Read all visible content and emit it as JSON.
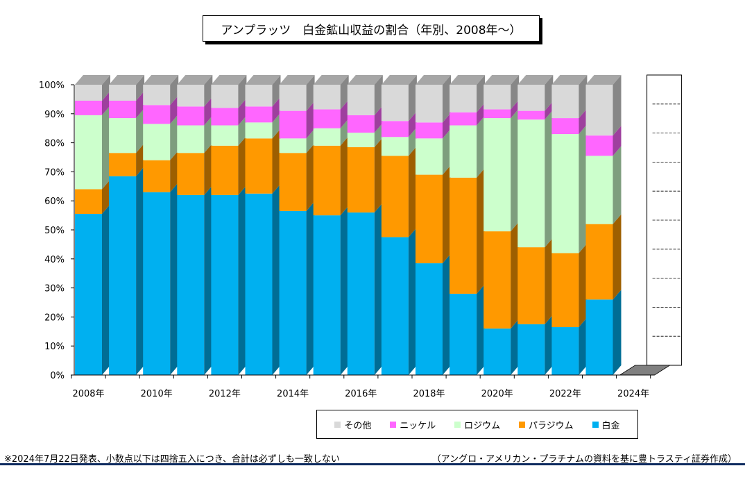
{
  "title": "アンプラッツ　白金鉱山収益の割合（年別、2008年～）",
  "chart_data": {
    "type": "bar",
    "stacked": true,
    "categories": [
      "2008",
      "2009",
      "2010",
      "2011",
      "2012",
      "2013",
      "2014",
      "2015",
      "2016",
      "2017",
      "2018",
      "2019",
      "2020",
      "2021",
      "2022",
      "2023",
      "2024"
    ],
    "xtick_labels": [
      "2008年",
      "2010年",
      "2012年",
      "2014年",
      "2016年",
      "2018年",
      "2020年",
      "2022年",
      "2024年"
    ],
    "ytick_labels": [
      "0%",
      "10%",
      "20%",
      "30%",
      "40%",
      "50%",
      "60%",
      "70%",
      "80%",
      "90%",
      "100%"
    ],
    "ylim": [
      0,
      100
    ],
    "unit": "%",
    "series": [
      {
        "name": "白金",
        "color": "#00b0f0",
        "values": [
          55.5,
          68.5,
          63,
          62,
          62,
          62.5,
          56.5,
          55,
          56,
          47.5,
          38.5,
          28,
          16,
          17.5,
          16.5,
          26,
          null
        ]
      },
      {
        "name": "パラジウム",
        "color": "#ff9900",
        "values": [
          8.5,
          8,
          11,
          14.5,
          17,
          19,
          20,
          24,
          22.5,
          28,
          30.5,
          40,
          33.5,
          26.5,
          25.5,
          26,
          null
        ]
      },
      {
        "name": "ロジウム",
        "color": "#ccffcc",
        "values": [
          25.5,
          12,
          12.5,
          9.5,
          7,
          5.5,
          5,
          6,
          5,
          6.5,
          12.5,
          18,
          39,
          44,
          41,
          23.5,
          null
        ]
      },
      {
        "name": "ニッケル",
        "color": "#ff66ff",
        "values": [
          5,
          6,
          6.5,
          6.5,
          6,
          5.5,
          9.5,
          6.5,
          6,
          5.5,
          5.5,
          4.5,
          3,
          3,
          5.5,
          7,
          null
        ]
      },
      {
        "name": "その他",
        "color": "#d9d9d9",
        "values": [
          5.5,
          5.5,
          7,
          7.5,
          8,
          7.5,
          9,
          8.5,
          10.5,
          12.5,
          13,
          9.5,
          8.5,
          9,
          11.5,
          17.5,
          null
        ]
      }
    ],
    "legend_order": [
      "その他",
      "ニッケル",
      "ロジウム",
      "パラジウム",
      "白金"
    ],
    "legend_position": "bottom-right",
    "style": "3d-column",
    "grid": false
  },
  "footnote_left": "※2024年7月22日発表、小数点以下は四捨五入につき、合計は必ずしも一致しない",
  "footnote_right": "（アングロ・アメリカン・プラチナムの資料を基に豊トラスティ証券作成）"
}
